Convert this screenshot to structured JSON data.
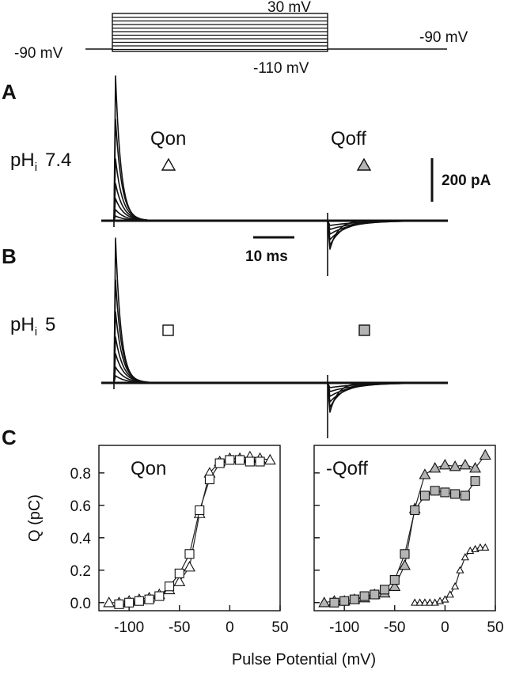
{
  "protocol": {
    "holding_left": "-90 mV",
    "top_step": "30 mV",
    "bottom_step": "-110 mV",
    "holding_right": "-90 mV",
    "step_count": 10
  },
  "panel_a": {
    "letter": "A",
    "ph_label": "pH",
    "ph_sub": "i",
    "ph_value": "7.4",
    "qon_label": "Qon",
    "qoff_label": "Qoff",
    "current_scale": "200 pA",
    "time_scale": "10 ms"
  },
  "panel_b": {
    "letter": "B",
    "ph_label": "pH",
    "ph_sub": "i",
    "ph_value": "5"
  },
  "panel_c": {
    "letter": "C",
    "ylabel": "Q (pC)",
    "xlabel": "Pulse Potential (mV)",
    "left_title": "Qon",
    "right_title": "-Qoff"
  },
  "colors": {
    "open_marker": "#ffffff",
    "filled_marker": "#b4b4b4",
    "ink": "#111111"
  },
  "chart_data": [
    {
      "type": "scatter",
      "title": "Qon",
      "xlabel": "Pulse Potential (mV)",
      "ylabel": "Q (pC)",
      "xlim": [
        -130,
        50
      ],
      "ylim": [
        -0.05,
        0.97
      ],
      "xticks": [
        -100,
        -50,
        0,
        50
      ],
      "yticks": [
        0.0,
        0.2,
        0.4,
        0.6,
        0.8
      ],
      "series": [
        {
          "marker": "triangle-open",
          "x": [
            -120,
            -110,
            -100,
            -90,
            -80,
            -70,
            -60,
            -50,
            -40,
            -30,
            -20,
            -10,
            0,
            10,
            20,
            30,
            40
          ],
          "y": [
            0.0,
            0.0,
            0.01,
            0.02,
            0.03,
            0.05,
            0.08,
            0.13,
            0.22,
            0.55,
            0.8,
            0.87,
            0.89,
            0.89,
            0.9,
            0.89,
            0.88
          ]
        },
        {
          "marker": "square-open",
          "x": [
            -110,
            -100,
            -90,
            -80,
            -70,
            -60,
            -50,
            -40,
            -30,
            -20,
            -10,
            0,
            10,
            20,
            30
          ],
          "y": [
            -0.01,
            0.0,
            0.01,
            0.02,
            0.04,
            0.1,
            0.18,
            0.3,
            0.57,
            0.76,
            0.86,
            0.88,
            0.88,
            0.87,
            0.87
          ]
        }
      ]
    },
    {
      "type": "scatter",
      "title": "-Qoff",
      "xlabel": "Pulse Potential (mV)",
      "xlim": [
        -130,
        50
      ],
      "ylim": [
        -0.05,
        0.97
      ],
      "xticks": [
        -100,
        -50,
        0,
        50
      ],
      "yticks": [
        0.0,
        0.2,
        0.4,
        0.6,
        0.8
      ],
      "series": [
        {
          "marker": "triangle-filled",
          "x": [
            -120,
            -110,
            -100,
            -90,
            -80,
            -70,
            -60,
            -50,
            -40,
            -30,
            -20,
            -10,
            0,
            10,
            20,
            30,
            40
          ],
          "y": [
            0.0,
            0.01,
            0.01,
            0.02,
            0.03,
            0.05,
            0.06,
            0.1,
            0.23,
            0.58,
            0.79,
            0.83,
            0.85,
            0.84,
            0.85,
            0.83,
            0.91
          ]
        },
        {
          "marker": "square-filled",
          "x": [
            -110,
            -100,
            -90,
            -80,
            -70,
            -60,
            -50,
            -40,
            -30,
            -20,
            -10,
            0,
            10,
            20,
            30
          ],
          "y": [
            0.0,
            0.01,
            0.02,
            0.04,
            0.05,
            0.08,
            0.14,
            0.3,
            0.57,
            0.66,
            0.69,
            0.68,
            0.67,
            0.66,
            0.75
          ]
        },
        {
          "marker": "triangle-small-open",
          "x": [
            -30,
            -25,
            -20,
            -15,
            -10,
            -5,
            0,
            5,
            10,
            15,
            20,
            25,
            30,
            35,
            40
          ],
          "y": [
            0.0,
            0.0,
            0.0,
            0.0,
            0.0,
            0.01,
            0.02,
            0.05,
            0.1,
            0.2,
            0.28,
            0.32,
            0.33,
            0.34,
            0.34
          ]
        }
      ]
    }
  ]
}
